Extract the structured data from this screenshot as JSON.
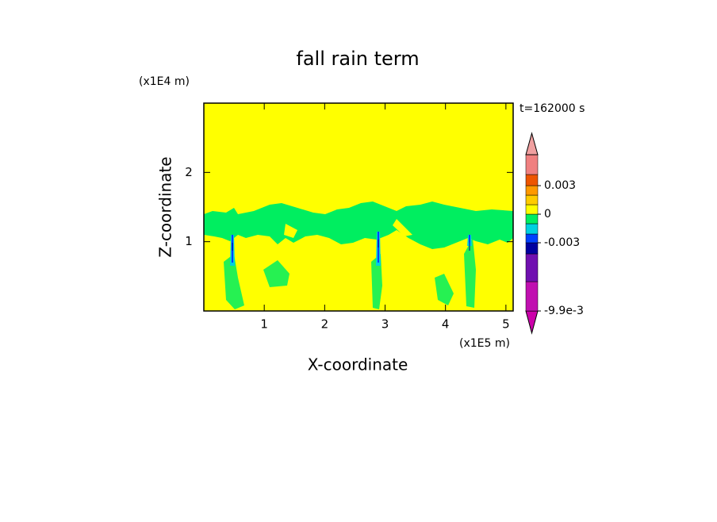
{
  "chart_data": {
    "type": "contour",
    "title": "fall rain term",
    "x_label": "X-coordinate",
    "y_label": "Z-coordinate",
    "x_unit": "(x1E5 m)",
    "y_unit": "(x1E4 m)",
    "time_label": "t=162000 s",
    "xlim": [
      0,
      5.12
    ],
    "ylim": [
      0,
      3
    ],
    "xticks": [
      1,
      2,
      3,
      4,
      5
    ],
    "yticks": [
      1,
      2
    ],
    "background_color": "#ffff00",
    "colorbar": {
      "levels": [
        -0.0099,
        -0.007,
        -0.004,
        -0.003,
        -0.002,
        -0.001,
        0,
        0.001,
        0.002,
        0.003,
        0.004,
        0.006
      ],
      "colors": [
        "#cc00aa",
        "#c010b0",
        "#7010b0",
        "#0000a0",
        "#0040ff",
        "#00d0e0",
        "#00ee60",
        "#ffff00",
        "#ffcc00",
        "#ff9900",
        "#ee5500",
        "#f08080",
        "#f0a0a0"
      ],
      "ticks": [
        0.003,
        0,
        -0.003,
        {
          "value": -0.0099,
          "label": "-9.9e-3"
        }
      ]
    }
  }
}
